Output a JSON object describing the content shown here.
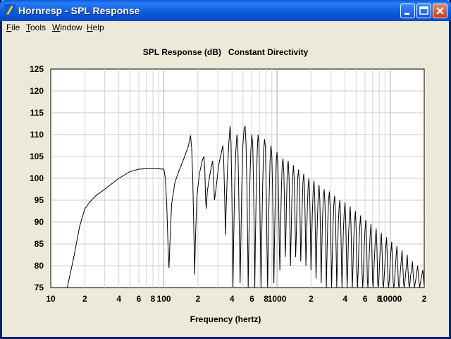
{
  "window": {
    "title": "Hornresp - SPL Response",
    "controls": [
      "minimize",
      "maximize",
      "close"
    ]
  },
  "menu": {
    "items": [
      {
        "first": "F",
        "rest": "ile"
      },
      {
        "first": "T",
        "rest": "ools"
      },
      {
        "first": "W",
        "rest": "indow"
      },
      {
        "first": "H",
        "rest": "elp"
      }
    ]
  },
  "chart_data": {
    "type": "line",
    "title": "SPL Response (dB)   Constant Directivity",
    "xlabel": "Frequency (hertz)",
    "ylabel": "",
    "x_scale": "log",
    "xlim": [
      10,
      20000
    ],
    "ylim": [
      75,
      125
    ],
    "grid": true,
    "y_ticks": [
      "125",
      "120",
      "115",
      "110",
      "105",
      "100",
      "95",
      "90",
      "85",
      "80",
      "75"
    ],
    "x_ticks": [
      {
        "f": 10,
        "label": "10"
      },
      {
        "f": 20,
        "label": "2"
      },
      {
        "f": 40,
        "label": "4"
      },
      {
        "f": 60,
        "label": "6"
      },
      {
        "f": 80,
        "label": "8"
      },
      {
        "f": 100,
        "label": "100"
      },
      {
        "f": 200,
        "label": "2"
      },
      {
        "f": 400,
        "label": "4"
      },
      {
        "f": 600,
        "label": "6"
      },
      {
        "f": 800,
        "label": "8"
      },
      {
        "f": 1000,
        "label": "1000"
      },
      {
        "f": 2000,
        "label": "2"
      },
      {
        "f": 4000,
        "label": "4"
      },
      {
        "f": 6000,
        "label": "6"
      },
      {
        "f": 8000,
        "label": "8"
      },
      {
        "f": 10000,
        "label": "10000"
      },
      {
        "f": 20000,
        "label": "2"
      }
    ],
    "series": [
      {
        "color": "#000000",
        "points": [
          [
            14,
            75
          ],
          [
            16,
            82
          ],
          [
            18,
            89
          ],
          [
            20,
            93
          ],
          [
            22,
            94.5
          ],
          [
            25,
            96
          ],
          [
            30,
            97.5
          ],
          [
            40,
            100
          ],
          [
            50,
            101.5
          ],
          [
            60,
            102.1
          ],
          [
            70,
            102.2
          ],
          [
            85,
            102.2
          ],
          [
            100,
            102.1
          ],
          [
            103,
            100
          ],
          [
            106,
            94
          ],
          [
            109,
            84
          ],
          [
            111,
            79.5
          ],
          [
            113,
            85
          ],
          [
            117,
            94
          ],
          [
            125,
            99
          ],
          [
            135,
            101.5
          ],
          [
            145,
            103.5
          ],
          [
            155,
            105.5
          ],
          [
            165,
            107.5
          ],
          [
            172,
            109.8
          ],
          [
            176,
            107
          ],
          [
            180,
            100
          ],
          [
            184,
            88
          ],
          [
            187,
            78
          ],
          [
            190,
            86
          ],
          [
            196,
            96
          ],
          [
            206,
            101
          ],
          [
            218,
            104
          ],
          [
            226,
            105
          ],
          [
            230,
            102
          ],
          [
            234,
            95
          ],
          [
            237,
            93
          ],
          [
            242,
            97
          ],
          [
            252,
            100
          ],
          [
            262,
            102.5
          ],
          [
            270,
            104
          ],
          [
            275,
            100
          ],
          [
            280,
            95
          ],
          [
            290,
            98
          ],
          [
            305,
            103
          ],
          [
            320,
            105.5
          ],
          [
            332,
            107.5
          ],
          [
            338,
            104
          ],
          [
            345,
            95
          ],
          [
            350,
            87
          ],
          [
            356,
            94
          ],
          [
            365,
            102
          ],
          [
            375,
            108
          ],
          [
            385,
            112
          ],
          [
            392,
            108
          ],
          [
            398,
            98
          ],
          [
            404,
            86
          ],
          [
            408,
            75
          ],
          [
            414,
            86
          ],
          [
            422,
            98
          ],
          [
            432,
            106
          ],
          [
            442,
            110
          ],
          [
            450,
            108
          ],
          [
            458,
            98
          ],
          [
            466,
            85
          ],
          [
            472,
            76
          ],
          [
            478,
            84
          ],
          [
            488,
            98
          ],
          [
            498,
            107
          ],
          [
            510,
            111
          ],
          [
            522,
            112
          ],
          [
            532,
            108
          ],
          [
            542,
            98
          ],
          [
            550,
            86
          ],
          [
            556,
            75
          ],
          [
            564,
            86
          ],
          [
            574,
            98
          ],
          [
            586,
            106
          ],
          [
            598,
            110
          ],
          [
            610,
            108
          ],
          [
            620,
            98
          ],
          [
            630,
            86
          ],
          [
            636,
            75
          ],
          [
            644,
            86
          ],
          [
            656,
            98
          ],
          [
            668,
            106
          ],
          [
            680,
            110
          ],
          [
            692,
            108
          ],
          [
            704,
            96
          ],
          [
            714,
            84
          ],
          [
            722,
            75
          ],
          [
            732,
            86
          ],
          [
            746,
            98
          ],
          [
            760,
            106
          ],
          [
            775,
            109
          ],
          [
            790,
            107
          ],
          [
            804,
            96
          ],
          [
            816,
            84
          ],
          [
            826,
            75
          ],
          [
            838,
            86
          ],
          [
            852,
            96
          ],
          [
            868,
            104
          ],
          [
            884,
            107.5
          ],
          [
            900,
            105
          ],
          [
            916,
            96
          ],
          [
            928,
            84
          ],
          [
            938,
            76
          ],
          [
            950,
            86
          ],
          [
            966,
            96
          ],
          [
            984,
            104
          ],
          [
            1000,
            106
          ],
          [
            1018,
            103
          ],
          [
            1034,
            94
          ],
          [
            1048,
            84
          ],
          [
            1060,
            79
          ],
          [
            1074,
            88
          ],
          [
            1092,
            97
          ],
          [
            1110,
            103
          ],
          [
            1130,
            104.5
          ],
          [
            1150,
            101
          ],
          [
            1168,
            92
          ],
          [
            1182,
            82
          ],
          [
            1196,
            86
          ],
          [
            1214,
            95
          ],
          [
            1234,
            102
          ],
          [
            1256,
            104
          ],
          [
            1278,
            100
          ],
          [
            1298,
            90
          ],
          [
            1314,
            80
          ],
          [
            1330,
            86
          ],
          [
            1350,
            94
          ],
          [
            1372,
            100
          ],
          [
            1396,
            103
          ],
          [
            1420,
            100
          ],
          [
            1442,
            91
          ],
          [
            1460,
            82
          ],
          [
            1478,
            86
          ],
          [
            1500,
            94
          ],
          [
            1524,
            100
          ],
          [
            1550,
            102
          ],
          [
            1576,
            99
          ],
          [
            1600,
            90
          ],
          [
            1620,
            81
          ],
          [
            1640,
            86
          ],
          [
            1666,
            93
          ],
          [
            1694,
            99
          ],
          [
            1722,
            101
          ],
          [
            1750,
            98
          ],
          [
            1778,
            89
          ],
          [
            1800,
            80
          ],
          [
            1824,
            86
          ],
          [
            1852,
            93
          ],
          [
            1882,
            98
          ],
          [
            1912,
            100
          ],
          [
            1942,
            97
          ],
          [
            1972,
            88
          ],
          [
            1996,
            79
          ],
          [
            2022,
            85
          ],
          [
            2052,
            92
          ],
          [
            2086,
            97
          ],
          [
            2120,
            99.5
          ],
          [
            2154,
            96
          ],
          [
            2186,
            86
          ],
          [
            2212,
            77
          ],
          [
            2242,
            84
          ],
          [
            2276,
            91
          ],
          [
            2314,
            96
          ],
          [
            2352,
            98.5
          ],
          [
            2390,
            95
          ],
          [
            2426,
            86
          ],
          [
            2456,
            76
          ],
          [
            2490,
            84
          ],
          [
            2528,
            91
          ],
          [
            2570,
            96
          ],
          [
            2612,
            97.5
          ],
          [
            2656,
            94
          ],
          [
            2696,
            85
          ],
          [
            2730,
            75
          ],
          [
            2768,
            83
          ],
          [
            2810,
            90
          ],
          [
            2856,
            95
          ],
          [
            2904,
            97
          ],
          [
            2952,
            93
          ],
          [
            2998,
            84
          ],
          [
            3036,
            75
          ],
          [
            3078,
            82
          ],
          [
            3124,
            89
          ],
          [
            3176,
            94
          ],
          [
            3230,
            96
          ],
          [
            3282,
            92
          ],
          [
            3332,
            83
          ],
          [
            3374,
            75
          ],
          [
            3420,
            82
          ],
          [
            3472,
            89
          ],
          [
            3530,
            93
          ],
          [
            3590,
            95
          ],
          [
            3648,
            91
          ],
          [
            3704,
            82
          ],
          [
            3750,
            75
          ],
          [
            3800,
            81
          ],
          [
            3858,
            88
          ],
          [
            3922,
            92
          ],
          [
            3990,
            94.5
          ],
          [
            4054,
            90
          ],
          [
            4116,
            81
          ],
          [
            4168,
            75
          ],
          [
            4224,
            80
          ],
          [
            4288,
            87
          ],
          [
            4360,
            91
          ],
          [
            4436,
            93.5
          ],
          [
            4508,
            89
          ],
          [
            4576,
            80
          ],
          [
            4632,
            75
          ],
          [
            4694,
            80
          ],
          [
            4766,
            86
          ],
          [
            4846,
            90
          ],
          [
            4930,
            92.5
          ],
          [
            5010,
            88
          ],
          [
            5086,
            79
          ],
          [
            5148,
            75
          ],
          [
            5216,
            79
          ],
          [
            5296,
            85
          ],
          [
            5386,
            89
          ],
          [
            5480,
            91.5
          ],
          [
            5568,
            87
          ],
          [
            5652,
            78
          ],
          [
            5720,
            75
          ],
          [
            5796,
            78
          ],
          [
            5886,
            84
          ],
          [
            5986,
            88
          ],
          [
            6090,
            90.5
          ],
          [
            6188,
            86
          ],
          [
            6282,
            77
          ],
          [
            6356,
            75
          ],
          [
            6440,
            78
          ],
          [
            6540,
            83
          ],
          [
            6652,
            87
          ],
          [
            6768,
            89.5
          ],
          [
            6876,
            85
          ],
          [
            6980,
            77
          ],
          [
            7062,
            75
          ],
          [
            7156,
            78
          ],
          [
            7268,
            82
          ],
          [
            7392,
            86
          ],
          [
            7522,
            88.5
          ],
          [
            7642,
            84
          ],
          [
            7756,
            76
          ],
          [
            7848,
            75
          ],
          [
            7952,
            77
          ],
          [
            8076,
            81
          ],
          [
            8214,
            85
          ],
          [
            8358,
            87.5
          ],
          [
            8490,
            83
          ],
          [
            8618,
            76
          ],
          [
            8720,
            75
          ],
          [
            8836,
            77
          ],
          [
            8974,
            80
          ],
          [
            9128,
            84
          ],
          [
            9288,
            86.5
          ],
          [
            9436,
            82
          ],
          [
            9576,
            76
          ],
          [
            9690,
            75
          ],
          [
            9820,
            77
          ],
          [
            9972,
            80
          ],
          [
            10142,
            83
          ],
          [
            10320,
            85.5
          ],
          [
            10484,
            81
          ],
          [
            10640,
            76
          ],
          [
            10768,
            75
          ],
          [
            10912,
            76
          ],
          [
            11080,
            79
          ],
          [
            11270,
            82
          ],
          [
            11468,
            84.5
          ],
          [
            11650,
            80
          ],
          [
            11824,
            76
          ],
          [
            11964,
            75
          ],
          [
            12124,
            76
          ],
          [
            12312,
            79
          ],
          [
            12522,
            81
          ],
          [
            12742,
            83.5
          ],
          [
            12944,
            80
          ],
          [
            13138,
            76
          ],
          [
            13294,
            75
          ],
          [
            13472,
            76
          ],
          [
            13680,
            78
          ],
          [
            13914,
            80
          ],
          [
            14158,
            82.5
          ],
          [
            14382,
            79
          ],
          [
            14598,
            76
          ],
          [
            14772,
            75
          ],
          [
            14968,
            76
          ],
          [
            15200,
            78
          ],
          [
            15460,
            79
          ],
          [
            15732,
            81
          ],
          [
            15980,
            78
          ],
          [
            16220,
            76
          ],
          [
            16412,
            75
          ],
          [
            16630,
            76
          ],
          [
            16890,
            77
          ],
          [
            17178,
            78.5
          ],
          [
            17480,
            80
          ],
          [
            17756,
            78
          ],
          [
            18022,
            76
          ],
          [
            18236,
            75
          ],
          [
            18478,
            76
          ],
          [
            18766,
            77
          ],
          [
            19086,
            78
          ],
          [
            19420,
            79
          ],
          [
            19730,
            77
          ],
          [
            20000,
            75.5
          ]
        ]
      }
    ]
  }
}
